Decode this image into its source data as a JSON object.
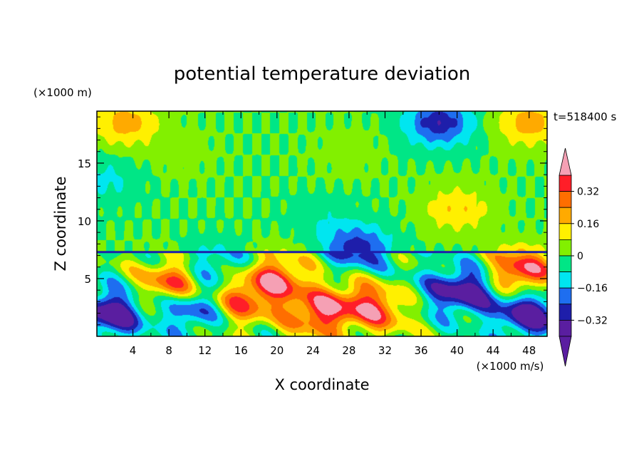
{
  "chart_data": {
    "type": "heatmap",
    "title": "potential temperature deviation",
    "xlabel": "X coordinate",
    "ylabel": "Z coordinate",
    "x_unit": "(×1000 m/s)",
    "y_unit": "(×1000 m)",
    "time_label": "t=518400 s",
    "xlim": [
      0,
      50
    ],
    "ylim": [
      0,
      19.5
    ],
    "x_ticks": [
      4,
      8,
      12,
      16,
      20,
      24,
      28,
      32,
      36,
      40,
      44,
      48
    ],
    "y_ticks": [
      5,
      10,
      15
    ],
    "colorbar": {
      "levels": [
        -0.4,
        -0.32,
        -0.24,
        -0.16,
        -0.08,
        0,
        0.08,
        0.16,
        0.24,
        0.32,
        0.4
      ],
      "labeled_levels": [
        0.32,
        0.16,
        0,
        -0.16,
        -0.32
      ],
      "label_texts": [
        "0.32",
        "0.16",
        "0",
        "−0.16",
        "−0.32"
      ],
      "colors": [
        "#5a1ea0",
        "#1e1eaa",
        "#1e6ef0",
        "#00e6f0",
        "#00e686",
        "#82f000",
        "#fff000",
        "#ffaa00",
        "#ff6e00",
        "#ff1e28"
      ],
      "over_color": "#f5a0b4",
      "under_color": "#5a1ea0",
      "extend": "both"
    },
    "features": [
      {
        "x": 9,
        "z": 16,
        "value": 0.04
      },
      {
        "x": 28,
        "z": 16,
        "value": 0.04
      },
      {
        "x": 3,
        "z": 18.5,
        "value": 0.2
      },
      {
        "x": 48,
        "z": 18.5,
        "value": 0.2
      },
      {
        "x": 1,
        "z": 13.5,
        "value": -0.1
      },
      {
        "x": 38,
        "z": 18.5,
        "value": -0.3
      },
      {
        "x": 40,
        "z": 11,
        "value": 0.15
      },
      {
        "x": 25,
        "z": 10,
        "value": -0.06
      },
      {
        "x": 29,
        "z": 7.6,
        "value": -0.28
      },
      {
        "x": 1.5,
        "z": 2,
        "value": -0.42
      },
      {
        "x": 8.5,
        "z": 4.5,
        "value": 0.38
      },
      {
        "x": 10.5,
        "z": 2.5,
        "value": -0.32
      },
      {
        "x": 16,
        "z": 3,
        "value": 0.3
      },
      {
        "x": 20,
        "z": 5,
        "value": 0.35
      },
      {
        "x": 24.5,
        "z": 2,
        "value": 0.35
      },
      {
        "x": 29,
        "z": 3,
        "value": 0.2
      },
      {
        "x": 32,
        "z": 2.3,
        "value": 0.25
      },
      {
        "x": 36,
        "z": 3.5,
        "value": -0.1
      },
      {
        "x": 41,
        "z": 4,
        "value": -0.4
      },
      {
        "x": 47,
        "z": 5.5,
        "value": 0.42
      },
      {
        "x": 48,
        "z": 2,
        "value": -0.42
      },
      {
        "x": 13,
        "z": 6,
        "value": -0.2
      }
    ]
  }
}
